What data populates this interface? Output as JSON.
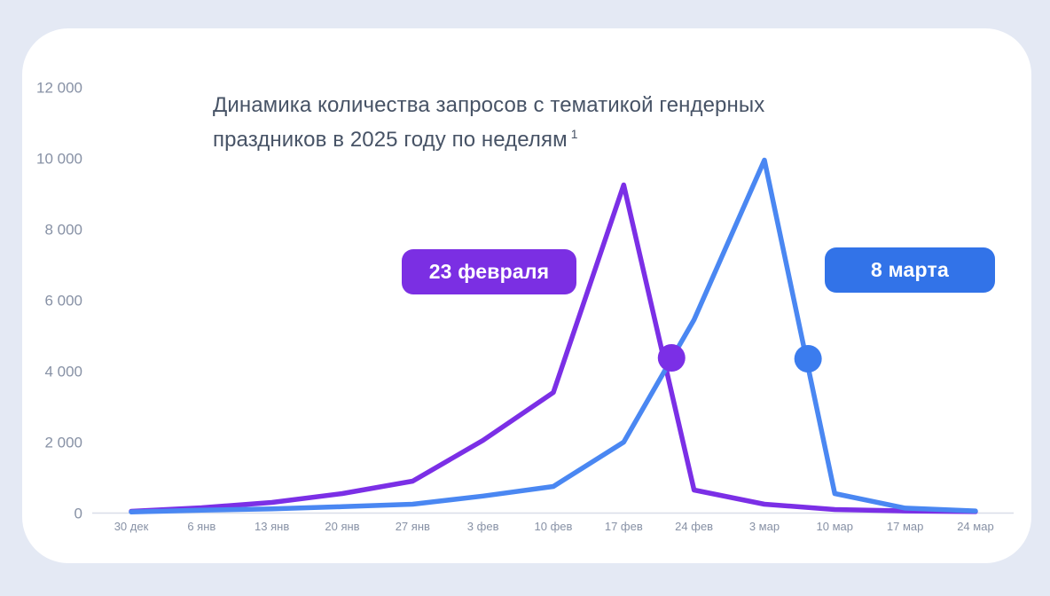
{
  "card": {
    "title_line1": "Динамика количества запросов с тематикой гендерных",
    "title_line2": "праздников в 2025 году по неделям",
    "title_footnote_marker": "1"
  },
  "colors": {
    "page_background": "#E4E9F4",
    "card_background": "#FFFFFF",
    "title_text": "#475366",
    "axis_label": "#8791A5",
    "baseline": "#D9DEE8",
    "purple_accent": "#7B2FE6",
    "blue_accent": "#3273E8",
    "blue_line": "#4A87F2",
    "blue_marker": "#3B7CEE"
  },
  "chart_data": {
    "type": "line",
    "title": "Динамика количества запросов с тематикой гендерных праздников в 2025 году по неделям (сноска 1)",
    "xlabel": "",
    "ylabel": "",
    "ylim": [
      0,
      12000
    ],
    "grid": false,
    "legend_position": "inline-badges",
    "categories": [
      "30 дек",
      "6 янв",
      "13 янв",
      "20 янв",
      "27 янв",
      "3 фев",
      "10 фев",
      "17 фев",
      "24 фев",
      "3 мар",
      "10 мар",
      "17 мар",
      "24 мар"
    ],
    "y_ticks": [
      {
        "value": 12000,
        "label": "12 000"
      },
      {
        "value": 10000,
        "label": "10 000"
      },
      {
        "value": 8000,
        "label": "8 000"
      },
      {
        "value": 6000,
        "label": "6 000"
      },
      {
        "value": 4000,
        "label": "4 000"
      },
      {
        "value": 2000,
        "label": "2 000"
      },
      {
        "value": 0,
        "label": "0"
      }
    ],
    "series": [
      {
        "name": "23 февраля",
        "color": "#7B2FE6",
        "values": [
          50,
          150,
          300,
          550,
          900,
          2050,
          3400,
          9250,
          650,
          250,
          100,
          60,
          40
        ],
        "holiday_marker": {
          "x_index": 7.68,
          "value": 4375,
          "color": "#7B2FE6"
        }
      },
      {
        "name": "8 марта",
        "color": "#4A87F2",
        "values": [
          30,
          80,
          120,
          180,
          250,
          480,
          750,
          2000,
          5450,
          9950,
          550,
          140,
          60
        ],
        "holiday_marker": {
          "x_index": 9.62,
          "value": 4350,
          "color": "#3B7CEE"
        }
      }
    ],
    "badges": [
      {
        "text": "23 февраля",
        "background": "#7B2FE3",
        "text_color": "#FFFFFF"
      },
      {
        "text": "8 марта",
        "background": "#3273E8",
        "text_color": "#FFFFFF"
      }
    ]
  }
}
